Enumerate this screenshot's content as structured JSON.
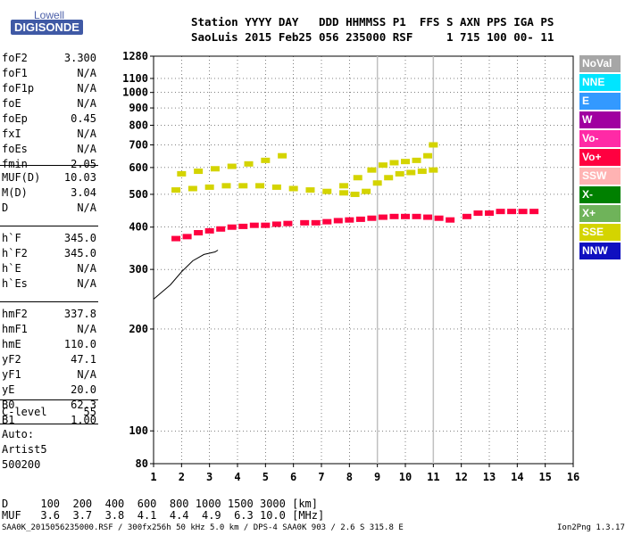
{
  "logo": {
    "top": "Lowell",
    "bottom": "DIGISONDE"
  },
  "header": {
    "row1": "Station YYYY DAY   DDD HHMMSS P1  FFS S AXN PPS IGA PS",
    "row2": "SaoLuis 2015 Feb25 056 235000 RSF     1 715 100 00- 11"
  },
  "params_group1": [
    {
      "name": "foF2",
      "value": "3.300"
    },
    {
      "name": "foF1",
      "value": "N/A"
    },
    {
      "name": "foF1p",
      "value": "N/A"
    },
    {
      "name": "foE",
      "value": "N/A"
    },
    {
      "name": "foEp",
      "value": "0.45"
    },
    {
      "name": "fxI",
      "value": "N/A"
    },
    {
      "name": "foEs",
      "value": "N/A"
    },
    {
      "name": "fmin",
      "value": "2.05"
    }
  ],
  "params_group2": [
    {
      "name": "MUF(D)",
      "value": "10.03"
    },
    {
      "name": "M(D)",
      "value": "3.04"
    },
    {
      "name": "D",
      "value": "N/A"
    }
  ],
  "params_group3": [
    {
      "name": "h`F",
      "value": "345.0"
    },
    {
      "name": "h`F2",
      "value": "345.0"
    },
    {
      "name": "h`E",
      "value": "N/A"
    },
    {
      "name": "h`Es",
      "value": "N/A"
    }
  ],
  "params_group4": [
    {
      "name": "hmF2",
      "value": "337.8"
    },
    {
      "name": "hmF1",
      "value": "N/A"
    },
    {
      "name": "hmE",
      "value": "110.0"
    },
    {
      "name": "yF2",
      "value": "47.1"
    },
    {
      "name": "yF1",
      "value": "N/A"
    },
    {
      "name": "yE",
      "value": "20.0"
    },
    {
      "name": "B0",
      "value": "62.3"
    },
    {
      "name": "B1",
      "value": "1.00"
    }
  ],
  "params_group5": [
    {
      "name": "C-level",
      "value": "55"
    }
  ],
  "autoscaling": {
    "line1": "Auto:",
    "line2": "Artist5",
    "line3": "500200"
  },
  "footer": {
    "d_line": "D     100  200  400  600  800 1000 1500 3000 [km]",
    "muf_line": "MUF   3.6  3.7  3.8  4.1  4.4  4.9  6.3 10.0 [MHz]",
    "info": "SAA0K_2015056235000.RSF / 300fx256h 50 kHz 5.0 km / DPS-4 SAA0K 903 / 2.6 S 315.8 E",
    "version": "Ion2Png 1.3.17"
  },
  "legend": [
    {
      "label": "NoVal",
      "color": "#a6a6a6",
      "text": "#ffffff"
    },
    {
      "label": "NNE",
      "color": "#00e5ff",
      "text": "#ffffff"
    },
    {
      "label": "E",
      "color": "#3399ff",
      "text": "#ffffff"
    },
    {
      "label": "W",
      "color": "#a000a0",
      "text": "#ffffff"
    },
    {
      "label": "Vo-",
      "color": "#ff2aa6",
      "text": "#ffffff"
    },
    {
      "label": "Vo+",
      "color": "#ff0040",
      "text": "#ffffff"
    },
    {
      "label": "SSW",
      "color": "#ffb3b3",
      "text": "#ffffff"
    },
    {
      "label": "X-",
      "color": "#008000",
      "text": "#ffffff"
    },
    {
      "label": "X+",
      "color": "#6fb35a",
      "text": "#ffffff"
    },
    {
      "label": "SSE",
      "color": "#d4d400",
      "text": "#ffffff"
    },
    {
      "label": "NNW",
      "color": "#1010c0",
      "text": "#ffffff"
    }
  ],
  "chart_data": {
    "type": "scatter",
    "title": "",
    "xlabel": "",
    "ylabel": "",
    "xlim": [
      1,
      16
    ],
    "ylim": [
      80,
      1280
    ],
    "yscale": "log",
    "xticks": [
      1,
      2,
      3,
      4,
      5,
      6,
      7,
      8,
      9,
      10,
      11,
      12,
      13,
      14,
      15,
      16
    ],
    "yticks": [
      80,
      100,
      200,
      300,
      400,
      500,
      600,
      700,
      800,
      900,
      1000,
      1100,
      1280
    ],
    "grid": true,
    "vertical_markers": [
      {
        "x": 9.0
      },
      {
        "x": 11.0
      }
    ],
    "trace_series": [
      {
        "name": "Vo+",
        "x": [
          1.8,
          2.2,
          2.6,
          3.0,
          3.4,
          3.8,
          4.2,
          4.6,
          5.0,
          5.4,
          5.8,
          6.4,
          6.8,
          7.2,
          7.6,
          8.0,
          8.4,
          8.8,
          9.2,
          9.6,
          10.0,
          10.4,
          10.8,
          11.2,
          11.6,
          12.2,
          12.6,
          13.0,
          13.4,
          13.8,
          14.2,
          14.6
        ],
        "y": [
          370,
          375,
          385,
          390,
          395,
          400,
          402,
          405,
          405,
          408,
          410,
          412,
          412,
          415,
          418,
          420,
          422,
          425,
          428,
          430,
          430,
          430,
          428,
          425,
          420,
          430,
          440,
          440,
          445,
          445,
          445,
          445
        ]
      },
      {
        "name": "SSE",
        "x": [
          1.8,
          2.4,
          3.0,
          3.6,
          4.2,
          4.8,
          5.4,
          6.0,
          6.6,
          7.2,
          7.8,
          8.2,
          8.6,
          9.0,
          9.4,
          9.8,
          10.2,
          10.6,
          11.0
        ],
        "y": [
          515,
          520,
          525,
          530,
          530,
          530,
          525,
          520,
          515,
          510,
          505,
          500,
          510,
          540,
          560,
          575,
          580,
          585,
          590
        ]
      },
      {
        "name": "SSE",
        "x": [
          2.0,
          2.6,
          3.2,
          3.8,
          4.4,
          5.0,
          5.6
        ],
        "y": [
          575,
          585,
          595,
          605,
          615,
          630,
          650
        ]
      },
      {
        "name": "SSE",
        "x": [
          7.8,
          8.3,
          8.8,
          9.2,
          9.6,
          10.0,
          10.4,
          10.8,
          11.0
        ],
        "y": [
          530,
          560,
          590,
          610,
          620,
          625,
          630,
          650,
          700
        ]
      }
    ],
    "fitted_profile": {
      "x": [
        1.0,
        1.6,
        2.0,
        2.4,
        2.8,
        3.2,
        3.3
      ],
      "y": [
        245,
        270,
        295,
        318,
        332,
        338,
        342
      ]
    }
  }
}
